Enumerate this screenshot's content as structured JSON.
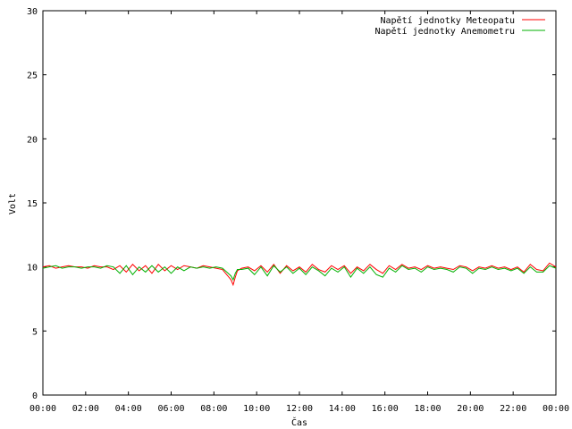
{
  "chart_data": {
    "type": "line",
    "title": "",
    "xlabel": "Čas",
    "ylabel": "Volt",
    "xlim": [
      0,
      24
    ],
    "ylim": [
      0,
      30
    ],
    "x_ticks": [
      "00:00",
      "02:00",
      "04:00",
      "06:00",
      "08:00",
      "10:00",
      "12:00",
      "14:00",
      "16:00",
      "18:00",
      "20:00",
      "22:00",
      "00:00"
    ],
    "y_ticks": [
      0,
      5,
      10,
      15,
      20,
      25,
      30
    ],
    "grid": false,
    "legend_position": "top-right",
    "series": [
      {
        "name": "Napětí jednotky Meteopatu",
        "color": "#ff0000",
        "x": [
          0,
          0.3,
          0.6,
          0.9,
          1.2,
          1.5,
          1.8,
          2.1,
          2.4,
          2.7,
          3.0,
          3.3,
          3.6,
          3.9,
          4.2,
          4.5,
          4.8,
          5.1,
          5.4,
          5.7,
          6.0,
          6.3,
          6.6,
          6.9,
          7.2,
          7.5,
          7.8,
          8.1,
          8.4,
          8.6,
          8.8,
          8.9,
          9.0,
          9.1,
          9.3,
          9.6,
          9.9,
          10.2,
          10.5,
          10.8,
          11.1,
          11.4,
          11.7,
          12.0,
          12.3,
          12.6,
          12.9,
          13.2,
          13.5,
          13.8,
          14.1,
          14.4,
          14.7,
          15.0,
          15.3,
          15.6,
          15.9,
          16.2,
          16.5,
          16.8,
          17.1,
          17.4,
          17.7,
          18.0,
          18.3,
          18.6,
          18.9,
          19.2,
          19.5,
          19.8,
          20.1,
          20.4,
          20.7,
          21.0,
          21.3,
          21.6,
          21.9,
          22.2,
          22.5,
          22.8,
          23.1,
          23.4,
          23.7,
          24.0
        ],
        "values": [
          10.0,
          10.1,
          9.9,
          10.0,
          10.1,
          10.0,
          10.0,
          9.9,
          10.1,
          10.0,
          10.0,
          9.8,
          10.1,
          9.6,
          10.2,
          9.7,
          10.1,
          9.5,
          10.2,
          9.7,
          10.1,
          9.8,
          10.1,
          10.0,
          9.9,
          10.1,
          10.0,
          9.9,
          9.8,
          9.4,
          9.0,
          8.6,
          9.2,
          9.7,
          9.9,
          10.0,
          9.7,
          10.1,
          9.6,
          10.2,
          9.5,
          10.1,
          9.7,
          10.0,
          9.6,
          10.2,
          9.8,
          9.6,
          10.1,
          9.8,
          10.1,
          9.5,
          10.0,
          9.7,
          10.2,
          9.8,
          9.5,
          10.1,
          9.8,
          10.2,
          9.9,
          10.0,
          9.8,
          10.1,
          9.9,
          10.0,
          9.9,
          9.8,
          10.1,
          10.0,
          9.7,
          10.0,
          9.9,
          10.1,
          9.9,
          10.0,
          9.8,
          10.0,
          9.6,
          10.2,
          9.8,
          9.7,
          10.3,
          10.0
        ]
      },
      {
        "name": "Napětí jednotky Anemometru",
        "color": "#00b000",
        "x": [
          0,
          0.3,
          0.6,
          0.9,
          1.2,
          1.5,
          1.8,
          2.1,
          2.4,
          2.7,
          3.0,
          3.3,
          3.6,
          3.9,
          4.2,
          4.5,
          4.8,
          5.1,
          5.4,
          5.7,
          6.0,
          6.3,
          6.6,
          6.9,
          7.2,
          7.5,
          7.8,
          8.1,
          8.4,
          8.6,
          8.8,
          8.9,
          9.0,
          9.1,
          9.3,
          9.6,
          9.9,
          10.2,
          10.5,
          10.8,
          11.1,
          11.4,
          11.7,
          12.0,
          12.3,
          12.6,
          12.9,
          13.2,
          13.5,
          13.8,
          14.1,
          14.4,
          14.7,
          15.0,
          15.3,
          15.6,
          15.9,
          16.2,
          16.5,
          16.8,
          17.1,
          17.4,
          17.7,
          18.0,
          18.3,
          18.6,
          18.9,
          19.2,
          19.5,
          19.8,
          20.1,
          20.4,
          20.7,
          21.0,
          21.3,
          21.6,
          21.9,
          22.2,
          22.5,
          22.8,
          23.1,
          23.4,
          23.7,
          24.0
        ],
        "values": [
          9.9,
          10.0,
          10.1,
          9.9,
          10.0,
          10.0,
          9.9,
          10.0,
          10.0,
          9.9,
          10.1,
          10.0,
          9.5,
          10.1,
          9.4,
          10.0,
          9.6,
          10.1,
          9.6,
          10.0,
          9.5,
          10.0,
          9.7,
          10.0,
          9.9,
          10.0,
          9.9,
          10.0,
          9.9,
          9.6,
          9.3,
          9.0,
          9.5,
          9.8,
          9.8,
          9.9,
          9.4,
          10.0,
          9.3,
          10.1,
          9.6,
          10.0,
          9.5,
          9.9,
          9.4,
          10.0,
          9.7,
          9.3,
          9.9,
          9.6,
          10.0,
          9.2,
          9.9,
          9.5,
          10.0,
          9.4,
          9.2,
          9.9,
          9.6,
          10.1,
          9.8,
          9.9,
          9.6,
          10.0,
          9.8,
          9.9,
          9.8,
          9.6,
          10.0,
          9.9,
          9.5,
          9.9,
          9.8,
          10.0,
          9.8,
          9.9,
          9.7,
          9.9,
          9.5,
          10.0,
          9.6,
          9.6,
          10.1,
          9.9
        ]
      }
    ]
  }
}
